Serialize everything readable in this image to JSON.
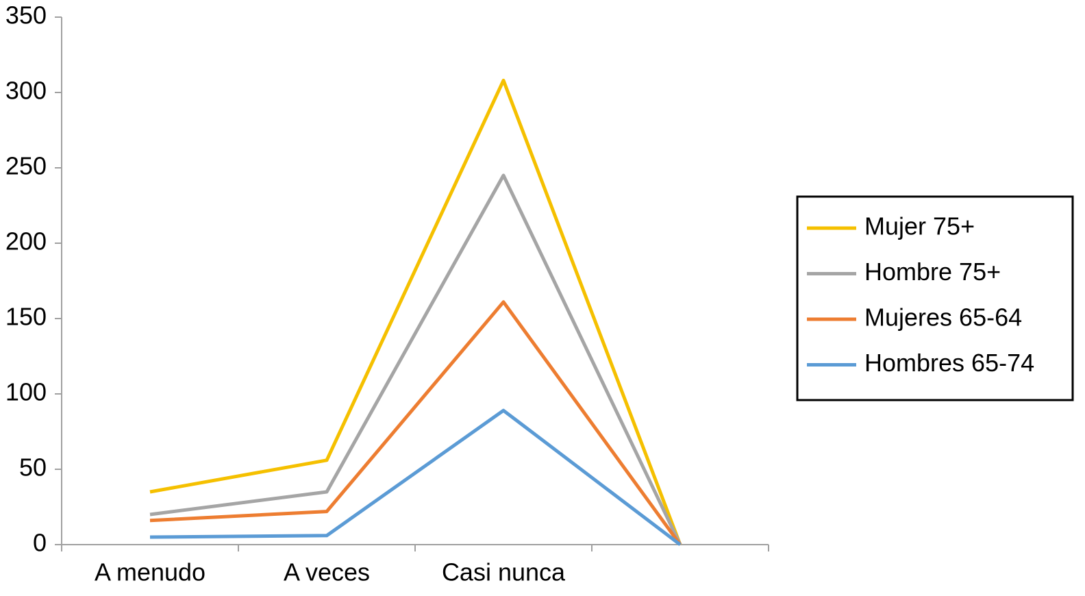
{
  "chart_data": {
    "type": "line",
    "categories": [
      "A menudo",
      "A veces",
      "Casi nunca",
      null
    ],
    "series": [
      {
        "name": "Mujer 75+",
        "color": "#f5c000",
        "values": [
          35,
          56,
          308,
          0
        ]
      },
      {
        "name": "Hombre 75+",
        "color": "#a5a5a5",
        "values": [
          20,
          35,
          245,
          0
        ]
      },
      {
        "name": "Mujeres 65-64",
        "color": "#ed7d31",
        "values": [
          16,
          22,
          161,
          0
        ]
      },
      {
        "name": "Hombres 65-74",
        "color": "#5b9bd5",
        "values": [
          5,
          6,
          89,
          0
        ]
      }
    ],
    "ylim": [
      0,
      350
    ],
    "yticks": [
      0,
      50,
      100,
      150,
      200,
      250,
      300,
      350
    ],
    "grid": false,
    "legend": "right"
  }
}
